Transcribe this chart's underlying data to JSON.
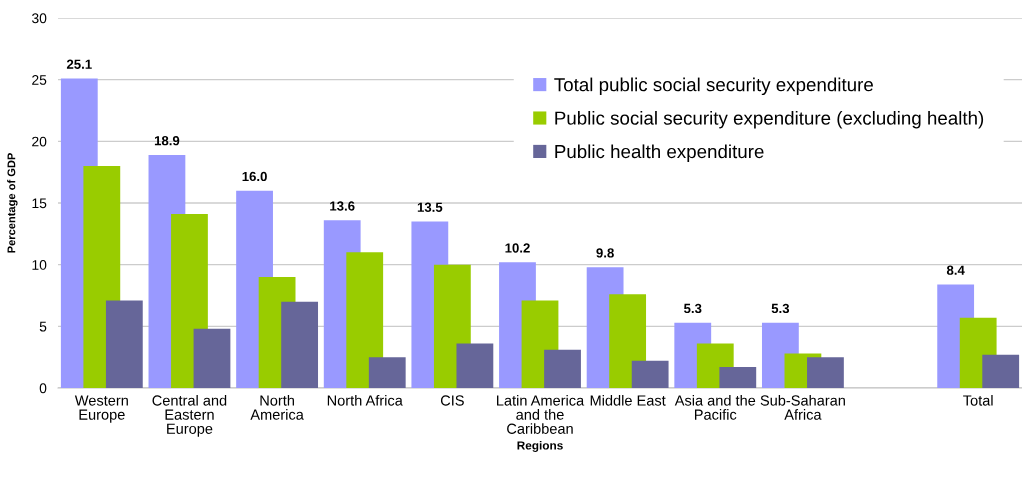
{
  "chart_data": {
    "type": "bar",
    "xlabel": "Regions",
    "ylabel": "Percentage of GDP",
    "categories": [
      "Western Europe",
      "Central and Eastern Europe",
      "North America",
      "North Africa",
      "CIS",
      "Latin America and the Caribbean",
      "Middle East",
      "Asia and the Pacific",
      "Sub-Saharan Africa",
      null,
      "Total"
    ],
    "series": [
      {
        "name": "Total public social security expenditure",
        "color": "#9999ff",
        "values": [
          25.1,
          18.9,
          16.0,
          13.6,
          13.5,
          10.2,
          9.8,
          5.3,
          5.3,
          null,
          8.4
        ],
        "value_labels": [
          "25.1",
          "18.9",
          "16.0",
          "13.6",
          "13.5",
          "10.2",
          "9.8",
          "5.3",
          "5.3",
          null,
          "8.4"
        ]
      },
      {
        "name": "Public social security expenditure (excluding health)",
        "color": "#99cc00",
        "values": [
          18.0,
          14.1,
          9.0,
          11.0,
          10.0,
          7.1,
          7.6,
          3.6,
          2.8,
          null,
          5.7
        ]
      },
      {
        "name": "Public health expenditure",
        "color": "#666699",
        "values": [
          7.1,
          4.8,
          7.0,
          2.5,
          3.6,
          3.1,
          2.2,
          1.7,
          2.5,
          null,
          2.7
        ]
      }
    ],
    "ylim": [
      0,
      30
    ],
    "yticks": [
      0,
      5,
      10,
      15,
      20,
      25,
      30
    ],
    "grid": "y",
    "legend": "top right"
  }
}
